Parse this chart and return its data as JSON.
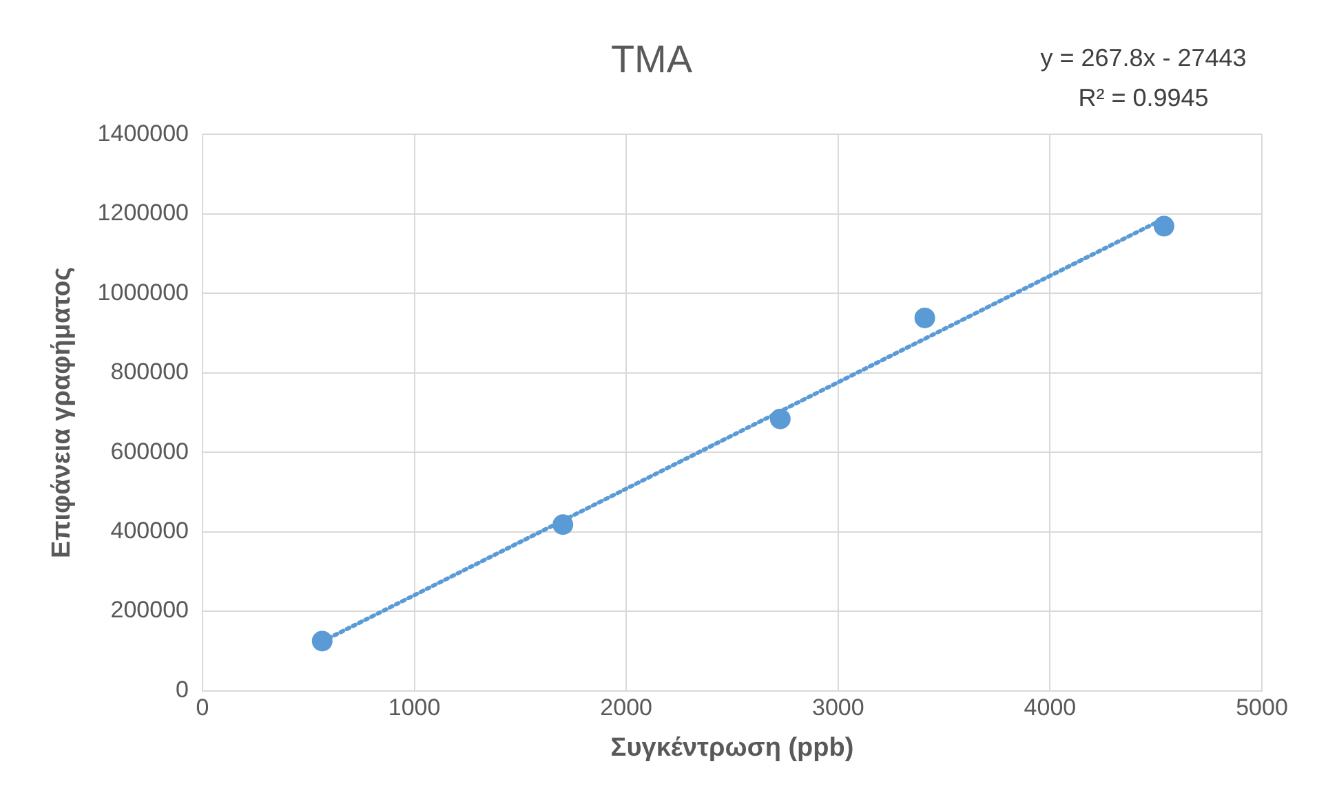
{
  "chart_data": {
    "type": "scatter",
    "title": "TMA",
    "xlabel": "Συγκέντρωση (ppb)",
    "ylabel": "Επιφάνεια γραφήματος",
    "annotations": [
      "y = 267.8x - 27443",
      "R² = 0.9945"
    ],
    "series": [
      {
        "color": "#5b9bd5",
        "x": [
          565,
          1701,
          2727,
          3409,
          4538
        ],
        "values": [
          125000,
          418000,
          684000,
          938000,
          1169000
        ],
        "marker": "circle"
      },
      {
        "type": "line",
        "color": "#5b9bd5",
        "x": [
          565,
          4538
        ],
        "values": [
          124000,
          1188000
        ],
        "line_style": "dotted",
        "marker": "none"
      }
    ],
    "xlim": [
      0,
      5000
    ],
    "xticks": [
      0,
      1000,
      2000,
      3000,
      4000,
      5000
    ],
    "ylim": [
      0,
      1400000
    ],
    "yticks": [
      0,
      200000,
      400000,
      600000,
      800000,
      1000000,
      1200000,
      1400000
    ],
    "grid": true,
    "legend": false
  }
}
